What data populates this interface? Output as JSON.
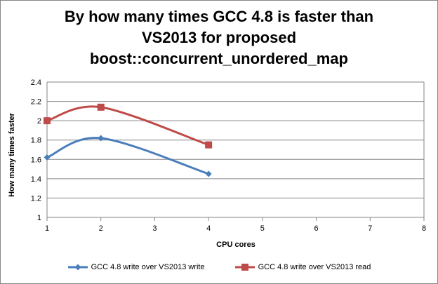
{
  "chart_data": {
    "type": "line",
    "title_lines": [
      "By how many times GCC 4.8 is faster than",
      "VS2013 for proposed",
      "boost::concurrent_unordered_map"
    ],
    "xlabel": "CPU cores",
    "ylabel": "How many times faster",
    "xlim": [
      1,
      8
    ],
    "ylim": [
      1,
      2.4
    ],
    "x_ticks": [
      "1",
      "2",
      "3",
      "4",
      "5",
      "6",
      "7",
      "8"
    ],
    "y_ticks": [
      "1",
      "1.2",
      "1.4",
      "1.6",
      "1.8",
      "2",
      "2.2",
      "2.4"
    ],
    "grid": "horizontal",
    "legend_position": "bottom",
    "series": [
      {
        "name": "GCC 4.8 write over VS2013 write",
        "x": [
          1,
          2,
          4
        ],
        "y": [
          1.62,
          1.82,
          1.45
        ],
        "color": "#4a7ebb",
        "marker": "diamond",
        "smooth": true
      },
      {
        "name": "GCC 4.8 write over VS2013 read",
        "x": [
          1,
          2,
          4
        ],
        "y": [
          2.0,
          2.14,
          1.75
        ],
        "color": "#be4b48",
        "marker": "square",
        "smooth": true
      }
    ]
  }
}
